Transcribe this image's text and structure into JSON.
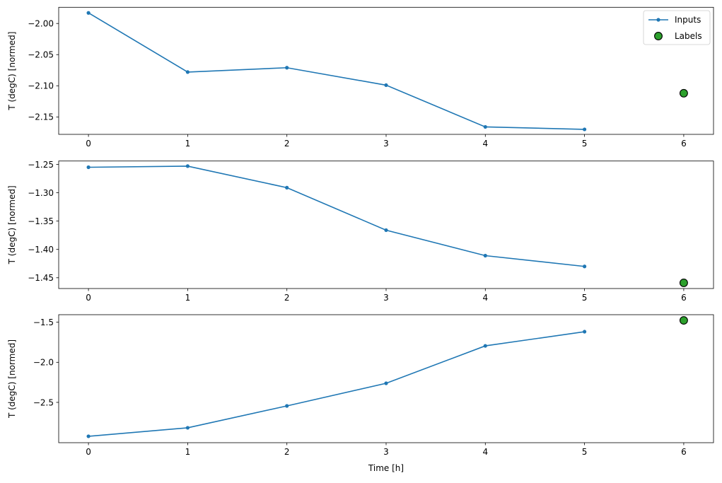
{
  "chart_data": [
    {
      "type": "line",
      "ylabel": "T (degC) [normed]",
      "xlabel": "",
      "xlim": [
        -0.3,
        6.3
      ],
      "ylim": [
        -2.178,
        -1.974
      ],
      "xticks": [
        0,
        1,
        2,
        3,
        4,
        5,
        6
      ],
      "yticks": [
        -2.0,
        -2.05,
        -2.1,
        -2.15
      ],
      "ytick_labels": [
        "−2.00",
        "−2.05",
        "−2.10",
        "−2.15"
      ],
      "inputs": {
        "x": [
          0,
          1,
          2,
          3,
          4,
          5
        ],
        "y": [
          -1.983,
          -2.078,
          -2.071,
          -2.099,
          -2.166,
          -2.17
        ]
      },
      "labels": {
        "x": [
          6
        ],
        "y": [
          -2.112
        ]
      },
      "legend": {
        "position": "top-right",
        "entries": [
          "Inputs",
          "Labels"
        ]
      }
    },
    {
      "type": "line",
      "ylabel": "T (degC) [normed]",
      "xlabel": "",
      "xlim": [
        -0.3,
        6.3
      ],
      "ylim": [
        -1.469,
        -1.244
      ],
      "xticks": [
        0,
        1,
        2,
        3,
        4,
        5,
        6
      ],
      "yticks": [
        -1.25,
        -1.3,
        -1.35,
        -1.4,
        -1.45
      ],
      "ytick_labels": [
        "−1.25",
        "−1.30",
        "−1.35",
        "−1.40",
        "−1.45"
      ],
      "inputs": {
        "x": [
          0,
          1,
          2,
          3,
          4,
          5
        ],
        "y": [
          -1.255,
          -1.253,
          -1.291,
          -1.366,
          -1.411,
          -1.43
        ]
      },
      "labels": {
        "x": [
          6
        ],
        "y": [
          -1.459
        ]
      }
    },
    {
      "type": "line",
      "ylabel": "T (degC) [normed]",
      "xlabel": "Time [h]",
      "xlim": [
        -0.3,
        6.3
      ],
      "ylim": [
        -3.003,
        -1.406
      ],
      "xticks": [
        0,
        1,
        2,
        3,
        4,
        5,
        6
      ],
      "yticks": [
        -1.5,
        -2.0,
        -2.5
      ],
      "ytick_labels": [
        "−1.5",
        "−2.0",
        "−2.5"
      ],
      "inputs": {
        "x": [
          0,
          1,
          2,
          3,
          4,
          5
        ],
        "y": [
          -2.923,
          -2.817,
          -2.544,
          -2.262,
          -1.795,
          -1.618
        ]
      },
      "labels": {
        "x": [
          6
        ],
        "y": [
          -1.477
        ]
      }
    }
  ],
  "colors": {
    "inputs": "#1f77b4",
    "labels": "#2ca02c"
  }
}
